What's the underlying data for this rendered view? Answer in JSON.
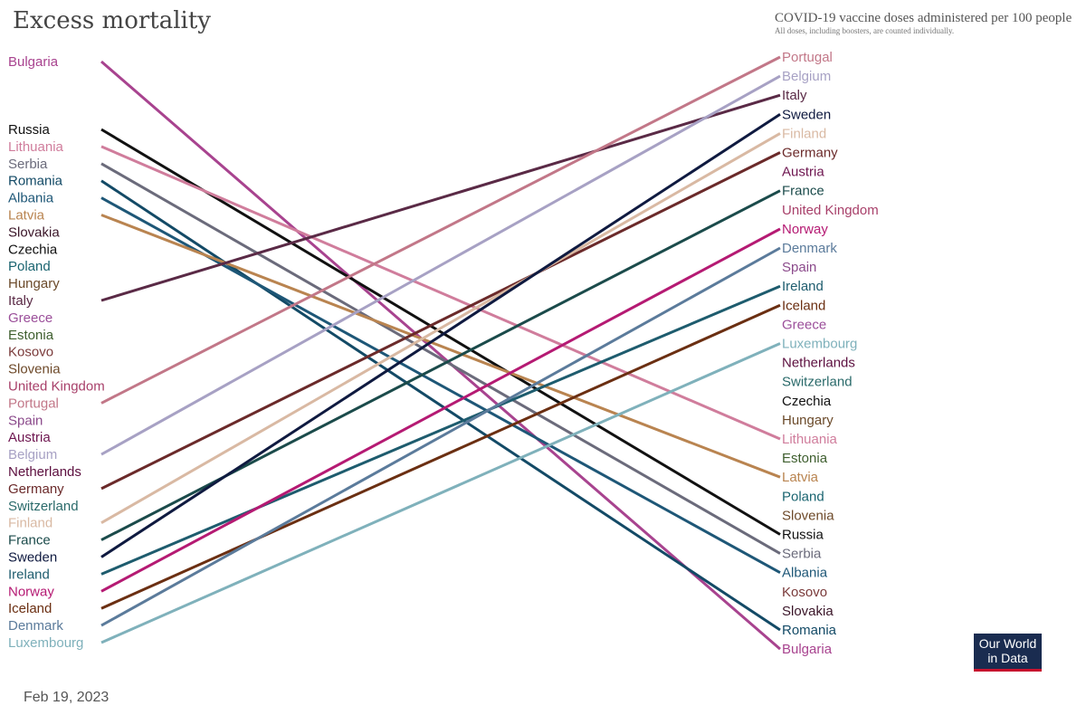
{
  "chart_data": {
    "type": "slope",
    "title": "Excess mortality",
    "right_title": "COVID-19 vaccine doses administered per 100 people",
    "right_subtitle": "All doses, including boosters, are counted individually.",
    "left_axis_order": [
      "Bulgaria",
      "Russia",
      "Lithuania",
      "Serbia",
      "Romania",
      "Albania",
      "Latvia",
      "Slovakia",
      "Czechia",
      "Poland",
      "Hungary",
      "Italy",
      "Greece",
      "Estonia",
      "Kosovo",
      "Slovenia",
      "United Kingdom",
      "Portugal",
      "Spain",
      "Austria",
      "Belgium",
      "Netherlands",
      "Germany",
      "Switzerland",
      "Finland",
      "France",
      "Sweden",
      "Ireland",
      "Norway",
      "Iceland",
      "Denmark",
      "Luxembourg"
    ],
    "right_axis_order": [
      "Portugal",
      "Belgium",
      "Italy",
      "Sweden",
      "Finland",
      "Germany",
      "Austria",
      "France",
      "United Kingdom",
      "Norway",
      "Denmark",
      "Spain",
      "Ireland",
      "Iceland",
      "Greece",
      "Luxembourg",
      "Netherlands",
      "Switzerland",
      "Czechia",
      "Hungary",
      "Lithuania",
      "Estonia",
      "Latvia",
      "Poland",
      "Slovenia",
      "Russia",
      "Serbia",
      "Albania",
      "Kosovo",
      "Slovakia",
      "Romania",
      "Bulgaria"
    ],
    "series_drawn": [
      "Bulgaria",
      "Russia",
      "Lithuania",
      "Serbia",
      "Romania",
      "Albania",
      "Latvia",
      "Italy",
      "Portugal",
      "Belgium",
      "Germany",
      "Finland",
      "France",
      "Sweden",
      "Ireland",
      "Norway",
      "Iceland",
      "Denmark",
      "Luxembourg"
    ]
  },
  "colors": {
    "Bulgaria": "#a8438f",
    "Russia": "#111111",
    "Lithuania": "#d07d9c",
    "Serbia": "#6b6b7b",
    "Romania": "#134a66",
    "Albania": "#1e5777",
    "Latvia": "#b98450",
    "Slovakia": "#3a1528",
    "Czechia": "#111111",
    "Poland": "#1a6470",
    "Hungary": "#6b4a2a",
    "Italy": "#5a2a46",
    "Greece": "#9b4f9a",
    "Estonia": "#3e5e2e",
    "Kosovo": "#7a3a3a",
    "Slovenia": "#6e4a2a",
    "United Kingdom": "#a8406a",
    "Portugal": "#c27788",
    "Spain": "#8b4a8b",
    "Austria": "#6e1650",
    "Belgium": "#a7a1c4",
    "Netherlands": "#5c0f3f",
    "Germany": "#6b2a2a",
    "Switzerland": "#2a6a6a",
    "Finland": "#d9b9a3",
    "France": "#1b4b4b",
    "Sweden": "#0f1a40",
    "Ireland": "#1e5c6e",
    "Norway": "#b51a73",
    "Iceland": "#6b2f12",
    "Denmark": "#5b7b9b",
    "Luxembourg": "#7fb1bb"
  },
  "date": "Feb 19, 2023",
  "logo": {
    "line1": "Our World",
    "line2": "in Data"
  }
}
